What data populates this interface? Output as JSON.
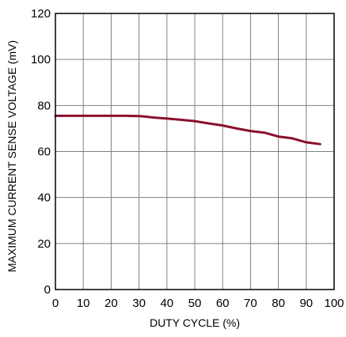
{
  "chart_data": {
    "type": "line",
    "title": "",
    "xlabel": "DUTY CYCLE (%)",
    "ylabel": "MAXIMUM CURRENT SENSE VOLTAGE (mV)",
    "xlim": [
      0,
      100
    ],
    "ylim": [
      0,
      120
    ],
    "x_ticks": [
      "0",
      "10",
      "20",
      "30",
      "40",
      "50",
      "60",
      "70",
      "80",
      "90",
      "100"
    ],
    "y_ticks": [
      "0",
      "20",
      "40",
      "60",
      "80",
      "100",
      "120"
    ],
    "grid": true,
    "legend": "none",
    "colors": {
      "line": "#8b0f2e",
      "grid": "#808080",
      "frame": "#000000"
    },
    "series": [
      {
        "x": [
          0,
          5,
          10,
          15,
          20,
          25,
          30,
          32,
          35,
          40,
          45,
          50,
          55,
          60,
          65,
          70,
          75,
          80,
          85,
          90,
          95
        ],
        "values": [
          75.5,
          75.5,
          75.5,
          75.5,
          75.5,
          75.5,
          75.4,
          75.2,
          74.8,
          74.3,
          73.8,
          73.2,
          72.2,
          71.3,
          70.0,
          68.9,
          68.2,
          66.5,
          65.7,
          64.0,
          63.2
        ]
      }
    ]
  }
}
